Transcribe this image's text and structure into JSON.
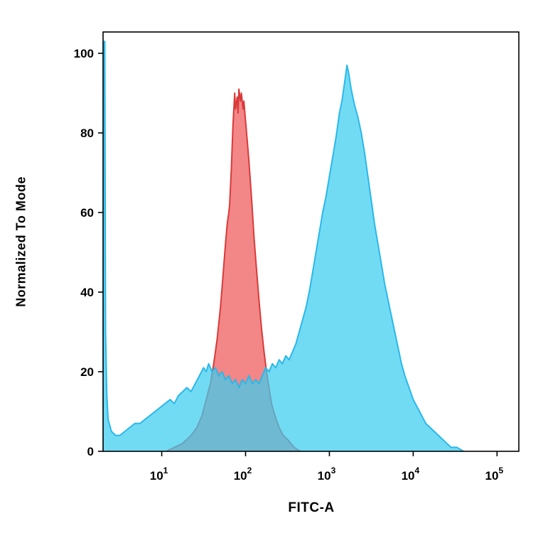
{
  "axes": {
    "xlabel": "FITC-A",
    "ylabel": "Normalized To Mode"
  },
  "chart_data": {
    "type": "area",
    "subtype": "flow-cytometry-overlay-histogram",
    "title": "",
    "xlabel": "FITC-A",
    "ylabel": "Normalized To Mode",
    "x_scale": "log10",
    "x_range_log10": [
      0.3,
      5.26
    ],
    "ylim": [
      0,
      100
    ],
    "grid": false,
    "legend": "none",
    "y_ticks": [
      0,
      20,
      40,
      60,
      80,
      100
    ],
    "x_ticks": [
      {
        "base": "10",
        "exp": "1",
        "log10": 1
      },
      {
        "base": "10",
        "exp": "2",
        "log10": 2
      },
      {
        "base": "10",
        "exp": "3",
        "log10": 3
      },
      {
        "base": "10",
        "exp": "4",
        "log10": 4
      },
      {
        "base": "10",
        "exp": "5",
        "log10": 5
      }
    ],
    "series": [
      {
        "name": "red-histogram",
        "stroke": "#d93a3a",
        "fill": "rgba(235,60,60,0.62)",
        "peak_log10x": 1.9,
        "peak_value": 91,
        "points": [
          [
            1.05,
            0
          ],
          [
            1.15,
            1
          ],
          [
            1.25,
            2
          ],
          [
            1.35,
            4
          ],
          [
            1.42,
            6
          ],
          [
            1.48,
            9
          ],
          [
            1.53,
            13
          ],
          [
            1.58,
            17
          ],
          [
            1.62,
            22
          ],
          [
            1.66,
            28
          ],
          [
            1.7,
            36
          ],
          [
            1.73,
            44
          ],
          [
            1.76,
            52
          ],
          [
            1.78,
            57
          ],
          [
            1.8,
            60
          ],
          [
            1.81,
            62
          ],
          [
            1.83,
            71
          ],
          [
            1.85,
            82
          ],
          [
            1.86,
            86
          ],
          [
            1.87,
            90
          ],
          [
            1.88,
            86
          ],
          [
            1.9,
            89
          ],
          [
            1.91,
            85
          ],
          [
            1.92,
            91
          ],
          [
            1.94,
            88
          ],
          [
            1.95,
            90
          ],
          [
            1.97,
            86
          ],
          [
            1.98,
            88
          ],
          [
            2.0,
            83
          ],
          [
            2.02,
            78
          ],
          [
            2.04,
            73
          ],
          [
            2.06,
            67
          ],
          [
            2.08,
            61
          ],
          [
            2.1,
            54
          ],
          [
            2.13,
            46
          ],
          [
            2.16,
            38
          ],
          [
            2.19,
            31
          ],
          [
            2.22,
            25
          ],
          [
            2.25,
            20
          ],
          [
            2.28,
            16
          ],
          [
            2.31,
            12
          ],
          [
            2.35,
            9
          ],
          [
            2.4,
            6
          ],
          [
            2.45,
            4
          ],
          [
            2.5,
            3
          ],
          [
            2.58,
            1
          ],
          [
            2.65,
            0
          ]
        ]
      },
      {
        "name": "cyan-histogram",
        "stroke": "#29b8ea",
        "fill": "rgba(60,205,240,0.72)",
        "peak_log10x": 3.21,
        "peak_value": 97,
        "points": [
          [
            0.3,
            0
          ],
          [
            0.305,
            103
          ],
          [
            0.32,
            103
          ],
          [
            0.33,
            30
          ],
          [
            0.345,
            14
          ],
          [
            0.36,
            8
          ],
          [
            0.4,
            5
          ],
          [
            0.45,
            4
          ],
          [
            0.5,
            4
          ],
          [
            0.56,
            5
          ],
          [
            0.62,
            6
          ],
          [
            0.68,
            7
          ],
          [
            0.74,
            7
          ],
          [
            0.8,
            8
          ],
          [
            0.86,
            9
          ],
          [
            0.92,
            10
          ],
          [
            0.98,
            11
          ],
          [
            1.04,
            12
          ],
          [
            1.1,
            13
          ],
          [
            1.15,
            12
          ],
          [
            1.2,
            14
          ],
          [
            1.25,
            15
          ],
          [
            1.3,
            16
          ],
          [
            1.35,
            15
          ],
          [
            1.4,
            17
          ],
          [
            1.45,
            19
          ],
          [
            1.5,
            21
          ],
          [
            1.53,
            20
          ],
          [
            1.56,
            22
          ],
          [
            1.6,
            20
          ],
          [
            1.64,
            21
          ],
          [
            1.68,
            19
          ],
          [
            1.72,
            20
          ],
          [
            1.76,
            18
          ],
          [
            1.8,
            19
          ],
          [
            1.84,
            17
          ],
          [
            1.88,
            18
          ],
          [
            1.92,
            16
          ],
          [
            1.96,
            18
          ],
          [
            2.0,
            17
          ],
          [
            2.04,
            19
          ],
          [
            2.08,
            17
          ],
          [
            2.12,
            18
          ],
          [
            2.16,
            17
          ],
          [
            2.2,
            19
          ],
          [
            2.24,
            21
          ],
          [
            2.28,
            20
          ],
          [
            2.32,
            22
          ],
          [
            2.36,
            21
          ],
          [
            2.4,
            23
          ],
          [
            2.44,
            22
          ],
          [
            2.48,
            24
          ],
          [
            2.52,
            23
          ],
          [
            2.56,
            25
          ],
          [
            2.6,
            27
          ],
          [
            2.64,
            30
          ],
          [
            2.68,
            33
          ],
          [
            2.72,
            36
          ],
          [
            2.76,
            40
          ],
          [
            2.8,
            45
          ],
          [
            2.84,
            50
          ],
          [
            2.88,
            55
          ],
          [
            2.92,
            60
          ],
          [
            2.96,
            64
          ],
          [
            3.0,
            69
          ],
          [
            3.04,
            74
          ],
          [
            3.08,
            79
          ],
          [
            3.12,
            85
          ],
          [
            3.15,
            88
          ],
          [
            3.17,
            91
          ],
          [
            3.19,
            94
          ],
          [
            3.21,
            97
          ],
          [
            3.23,
            95
          ],
          [
            3.26,
            91
          ],
          [
            3.3,
            87
          ],
          [
            3.34,
            84
          ],
          [
            3.38,
            80
          ],
          [
            3.42,
            75
          ],
          [
            3.46,
            69
          ],
          [
            3.5,
            63
          ],
          [
            3.54,
            57
          ],
          [
            3.58,
            52
          ],
          [
            3.62,
            47
          ],
          [
            3.66,
            42
          ],
          [
            3.7,
            38
          ],
          [
            3.74,
            34
          ],
          [
            3.78,
            30
          ],
          [
            3.82,
            26
          ],
          [
            3.86,
            22
          ],
          [
            3.9,
            19
          ],
          [
            3.95,
            16
          ],
          [
            4.0,
            13
          ],
          [
            4.05,
            11
          ],
          [
            4.1,
            9
          ],
          [
            4.15,
            7
          ],
          [
            4.2,
            6
          ],
          [
            4.25,
            5
          ],
          [
            4.3,
            4
          ],
          [
            4.35,
            3
          ],
          [
            4.4,
            2
          ],
          [
            4.45,
            1
          ],
          [
            4.52,
            1
          ],
          [
            4.6,
            0
          ]
        ]
      }
    ]
  }
}
